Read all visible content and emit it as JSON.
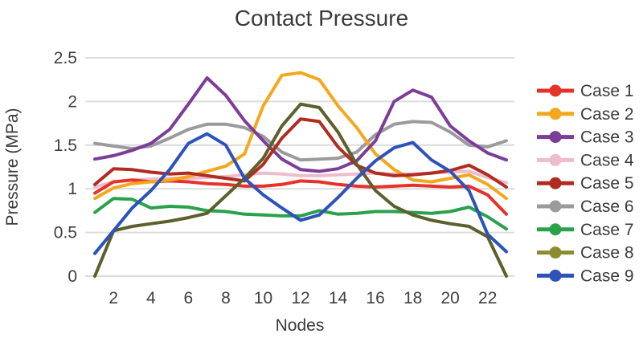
{
  "title": "Contact Pressure",
  "x_axis": {
    "label": "Nodes",
    "ticks": [
      2,
      4,
      6,
      8,
      10,
      12,
      14,
      16,
      18,
      20,
      22
    ]
  },
  "y_axis": {
    "label": "Pressure (MPa)",
    "ticks": [
      0,
      0.5,
      1,
      1.5,
      2,
      2.5
    ]
  },
  "colors": {
    "grid": "#dcdcdc",
    "text": "#3a3a3a"
  },
  "chart_data": {
    "type": "line",
    "title": "Contact Pressure",
    "xlabel": "Nodes",
    "ylabel": "Pressure (MPa)",
    "xlim": [
      1,
      23
    ],
    "ylim": [
      0,
      2.5
    ],
    "grid": "horizontal",
    "legend_position": "right",
    "x": [
      1,
      2,
      3,
      4,
      5,
      6,
      7,
      8,
      9,
      10,
      11,
      12,
      13,
      14,
      15,
      16,
      17,
      18,
      19,
      20,
      21,
      22,
      23
    ],
    "series": [
      {
        "name": "Case 1",
        "color": "#e63229",
        "legend_color": "#e63229",
        "values": [
          0.95,
          1.08,
          1.1,
          1.08,
          1.09,
          1.08,
          1.06,
          1.05,
          1.03,
          1.03,
          1.05,
          1.09,
          1.08,
          1.05,
          1.03,
          1.02,
          1.03,
          1.04,
          1.03,
          1.02,
          1.03,
          0.93,
          0.71
        ]
      },
      {
        "name": "Case 2",
        "color": "#f3a71e",
        "legend_color": "#f3a71e",
        "values": [
          0.89,
          1.01,
          1.06,
          1.08,
          1.1,
          1.14,
          1.2,
          1.26,
          1.4,
          1.95,
          2.3,
          2.33,
          2.25,
          1.95,
          1.7,
          1.4,
          1.22,
          1.1,
          1.08,
          1.12,
          1.16,
          1.05,
          0.89
        ]
      },
      {
        "name": "Case 3",
        "color": "#7c3d97",
        "legend_color": "#7c3d97",
        "values": [
          1.34,
          1.38,
          1.44,
          1.52,
          1.68,
          1.97,
          2.27,
          2.07,
          1.78,
          1.55,
          1.34,
          1.22,
          1.2,
          1.23,
          1.32,
          1.55,
          2.0,
          2.13,
          2.05,
          1.72,
          1.55,
          1.41,
          1.33
        ]
      },
      {
        "name": "Case 4",
        "color": "#edbccd",
        "legend_color": "#edbccd",
        "values": [
          1.02,
          1.08,
          1.1,
          1.11,
          1.12,
          1.12,
          1.13,
          1.14,
          1.16,
          1.18,
          1.17,
          1.15,
          1.15,
          1.16,
          1.17,
          1.18,
          1.17,
          1.17,
          1.18,
          1.19,
          1.2,
          1.13,
          1.07
        ]
      },
      {
        "name": "Case 5",
        "color": "#b02c21",
        "legend_color": "#b02c21",
        "values": [
          1.05,
          1.23,
          1.22,
          1.19,
          1.17,
          1.18,
          1.15,
          1.12,
          1.09,
          1.28,
          1.58,
          1.8,
          1.77,
          1.48,
          1.27,
          1.18,
          1.15,
          1.16,
          1.18,
          1.21,
          1.27,
          1.16,
          1.02
        ]
      },
      {
        "name": "Case 6",
        "color": "#9b9a9c",
        "legend_color": "#9b9a9c",
        "values": [
          1.52,
          1.49,
          1.46,
          1.49,
          1.58,
          1.68,
          1.74,
          1.74,
          1.7,
          1.6,
          1.42,
          1.33,
          1.34,
          1.35,
          1.42,
          1.62,
          1.74,
          1.77,
          1.76,
          1.65,
          1.5,
          1.48,
          1.55
        ]
      },
      {
        "name": "Case 7",
        "color": "#2aa24c",
        "legend_color": "#2aa24c",
        "values": [
          0.73,
          0.89,
          0.88,
          0.78,
          0.8,
          0.79,
          0.75,
          0.74,
          0.71,
          0.7,
          0.69,
          0.69,
          0.75,
          0.71,
          0.72,
          0.74,
          0.74,
          0.73,
          0.72,
          0.74,
          0.79,
          0.68,
          0.54
        ]
      },
      {
        "name": "Case 8",
        "color": "#5d5f2c",
        "legend_color": "#8b8c2f",
        "values": [
          0.0,
          0.52,
          0.57,
          0.6,
          0.63,
          0.67,
          0.72,
          0.92,
          1.12,
          1.35,
          1.72,
          1.97,
          1.93,
          1.65,
          1.28,
          0.98,
          0.8,
          0.7,
          0.64,
          0.6,
          0.57,
          0.45,
          0.0
        ]
      },
      {
        "name": "Case 9",
        "color": "#2d52ba",
        "legend_color": "#2d52ba",
        "values": [
          0.26,
          0.52,
          0.78,
          0.98,
          1.22,
          1.52,
          1.63,
          1.5,
          1.12,
          0.93,
          0.78,
          0.64,
          0.7,
          0.9,
          1.12,
          1.32,
          1.47,
          1.53,
          1.33,
          1.2,
          0.98,
          0.48,
          0.28
        ]
      }
    ]
  }
}
